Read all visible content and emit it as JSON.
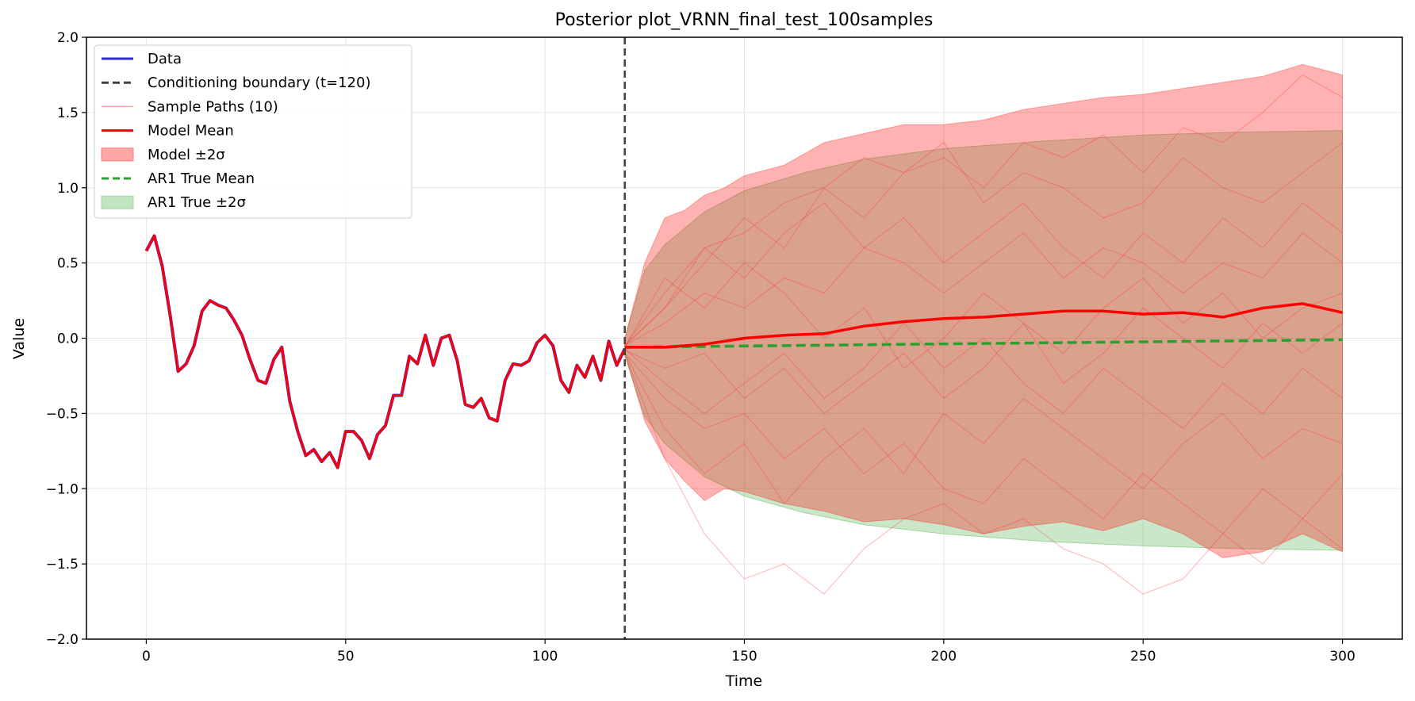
{
  "chart_data": {
    "type": "line",
    "title": "Posterior plot_VRNN_final_test_100samples",
    "xlabel": "Time",
    "ylabel": "Value",
    "xlim": [
      -15,
      315
    ],
    "ylim": [
      -2.0,
      2.0
    ],
    "xticks": [
      0,
      50,
      100,
      150,
      200,
      250,
      300
    ],
    "yticks": [
      -2.0,
      -1.5,
      -1.0,
      -0.5,
      0.0,
      0.5,
      1.0,
      1.5,
      2.0
    ],
    "grid": true,
    "legend_position": "top-left",
    "conditioning_boundary": 120,
    "legend": [
      {
        "label": "Data",
        "kind": "line",
        "color": "#2b2bdd"
      },
      {
        "label": "Conditioning boundary (t=120)",
        "kind": "dashed",
        "color": "#404040"
      },
      {
        "label": "Sample Paths (10)",
        "kind": "thin",
        "color": "#ff9c9c"
      },
      {
        "label": "Model Mean",
        "kind": "line",
        "color": "#ff0000"
      },
      {
        "label": "Model ±2σ",
        "kind": "patch",
        "color": "#ff8080"
      },
      {
        "label": "AR1 True Mean",
        "kind": "dashed",
        "color": "#2ca02c"
      },
      {
        "label": "AR1 True ±2σ",
        "kind": "patch",
        "color": "#a6d8a6"
      }
    ],
    "data": {
      "x": [
        0,
        2,
        4,
        6,
        8,
        10,
        12,
        14,
        16,
        18,
        20,
        22,
        24,
        26,
        28,
        30,
        32,
        34,
        36,
        38,
        40,
        42,
        44,
        46,
        48,
        50,
        52,
        54,
        56,
        58,
        60,
        62,
        64,
        66,
        68,
        70,
        72,
        74,
        76,
        78,
        80,
        82,
        84,
        86,
        88,
        90,
        92,
        94,
        96,
        98,
        100,
        102,
        104,
        106,
        108,
        110,
        112,
        114,
        116,
        118,
        120
      ],
      "y": [
        0.58,
        0.68,
        0.48,
        0.15,
        -0.22,
        -0.17,
        -0.05,
        0.18,
        0.25,
        0.22,
        0.2,
        0.12,
        0.02,
        -0.14,
        -0.28,
        -0.3,
        -0.14,
        -0.06,
        -0.42,
        -0.62,
        -0.78,
        -0.74,
        -0.82,
        -0.76,
        -0.86,
        -0.62,
        -0.62,
        -0.68,
        -0.8,
        -0.64,
        -0.58,
        -0.38,
        -0.38,
        -0.12,
        -0.17,
        0.02,
        -0.18,
        0.0,
        0.02,
        -0.15,
        -0.44,
        -0.46,
        -0.4,
        -0.53,
        -0.55,
        -0.28,
        -0.17,
        -0.18,
        -0.15,
        -0.03,
        0.02,
        -0.05,
        -0.28,
        -0.36,
        -0.18,
        -0.26,
        -0.12,
        -0.28,
        -0.02,
        -0.18,
        -0.07
      ]
    },
    "model_mean": {
      "x": [
        120,
        130,
        140,
        150,
        160,
        170,
        180,
        190,
        200,
        210,
        220,
        230,
        240,
        250,
        260,
        270,
        280,
        290,
        300
      ],
      "y": [
        -0.06,
        -0.06,
        -0.04,
        0.0,
        0.02,
        0.03,
        0.08,
        0.11,
        0.13,
        0.14,
        0.16,
        0.18,
        0.18,
        0.16,
        0.17,
        0.14,
        0.2,
        0.23,
        0.17
      ]
    },
    "model_band": {
      "x": [
        120,
        125,
        130,
        135,
        140,
        145,
        150,
        160,
        170,
        180,
        190,
        200,
        210,
        220,
        230,
        240,
        250,
        260,
        270,
        280,
        290,
        300
      ],
      "upper": [
        0.0,
        0.5,
        0.8,
        0.85,
        0.95,
        1.0,
        1.08,
        1.15,
        1.3,
        1.36,
        1.42,
        1.42,
        1.45,
        1.52,
        1.56,
        1.6,
        1.62,
        1.66,
        1.7,
        1.74,
        1.82,
        1.75
      ],
      "lower": [
        -0.1,
        -0.55,
        -0.8,
        -0.95,
        -1.08,
        -1.0,
        -1.02,
        -1.1,
        -1.15,
        -1.22,
        -1.2,
        -1.24,
        -1.3,
        -1.25,
        -1.22,
        -1.28,
        -1.2,
        -1.3,
        -1.46,
        -1.42,
        -1.3,
        -1.42
      ]
    },
    "ar1_mean": {
      "x": [
        120,
        300
      ],
      "y": [
        -0.06,
        -0.01
      ]
    },
    "ar1_band": {
      "x": [
        120,
        125,
        130,
        140,
        150,
        165,
        180,
        200,
        225,
        250,
        275,
        300
      ],
      "upper": [
        0.0,
        0.45,
        0.62,
        0.84,
        0.98,
        1.1,
        1.19,
        1.26,
        1.31,
        1.35,
        1.37,
        1.38
      ],
      "lower": [
        -0.12,
        -0.52,
        -0.7,
        -0.92,
        -1.05,
        -1.16,
        -1.24,
        -1.3,
        -1.35,
        -1.38,
        -1.4,
        -1.41
      ]
    },
    "sample_paths": [
      {
        "x": [
          120,
          130,
          140,
          150,
          160,
          170,
          180,
          190,
          200,
          210,
          220,
          230,
          240,
          250,
          260,
          270,
          280,
          290,
          300
        ],
        "y": [
          -0.05,
          0.3,
          0.6,
          0.7,
          0.9,
          1.0,
          0.8,
          1.1,
          1.2,
          1.0,
          1.3,
          1.2,
          1.35,
          1.1,
          1.4,
          1.3,
          1.5,
          1.75,
          1.6
        ]
      },
      {
        "x": [
          120,
          130,
          140,
          150,
          160,
          170,
          180,
          190,
          200,
          210,
          220,
          230,
          240,
          250,
          260,
          270,
          280,
          290,
          300
        ],
        "y": [
          -0.1,
          -0.8,
          -1.3,
          -1.6,
          -1.5,
          -1.7,
          -1.4,
          -1.2,
          -1.1,
          -1.3,
          -1.2,
          -1.4,
          -1.5,
          -1.7,
          -1.6,
          -1.3,
          -1.5,
          -1.2,
          -1.4
        ]
      },
      {
        "x": [
          120,
          130,
          140,
          150,
          160,
          170,
          180,
          190,
          200,
          210,
          220,
          230,
          240,
          250,
          260,
          270,
          280,
          290,
          300
        ],
        "y": [
          -0.05,
          0.2,
          0.5,
          0.8,
          0.6,
          1.0,
          1.2,
          1.1,
          1.3,
          0.9,
          1.1,
          1.0,
          0.8,
          0.9,
          1.2,
          1.0,
          0.9,
          1.1,
          1.3
        ]
      },
      {
        "x": [
          120,
          130,
          140,
          150,
          160,
          170,
          180,
          190,
          200,
          210,
          220,
          230,
          240,
          250,
          260,
          270,
          280,
          290,
          300
        ],
        "y": [
          -0.1,
          -0.4,
          -0.6,
          -0.5,
          -0.8,
          -0.6,
          -0.9,
          -0.7,
          -1.0,
          -1.1,
          -0.8,
          -1.0,
          -1.2,
          -0.9,
          -1.1,
          -1.3,
          -1.0,
          -1.2,
          -0.9
        ]
      },
      {
        "x": [
          120,
          130,
          140,
          150,
          160,
          170,
          180,
          190,
          200,
          210,
          220,
          230,
          240,
          250,
          260,
          270,
          280,
          290,
          300
        ],
        "y": [
          -0.05,
          0.1,
          0.3,
          0.2,
          0.4,
          0.3,
          0.6,
          0.5,
          0.3,
          0.5,
          0.7,
          0.4,
          0.6,
          0.5,
          0.3,
          0.5,
          0.4,
          0.7,
          0.5
        ]
      },
      {
        "x": [
          120,
          130,
          140,
          150,
          160,
          170,
          180,
          190,
          200,
          210,
          220,
          230,
          240,
          250,
          260,
          270,
          280,
          290,
          300
        ],
        "y": [
          -0.08,
          -0.2,
          -0.1,
          -0.4,
          -0.2,
          -0.5,
          -0.3,
          -0.1,
          -0.4,
          -0.2,
          0.1,
          -0.3,
          -0.1,
          0.2,
          0.0,
          -0.2,
          0.1,
          -0.1,
          0.1
        ]
      },
      {
        "x": [
          120,
          130,
          140,
          150,
          160,
          170,
          180,
          190,
          200,
          210,
          220,
          230,
          240,
          250,
          260,
          270,
          280,
          290,
          300
        ],
        "y": [
          -0.06,
          0.4,
          0.2,
          0.5,
          0.3,
          0.0,
          0.2,
          -0.2,
          0.0,
          0.3,
          0.1,
          -0.1,
          0.2,
          0.4,
          0.1,
          0.3,
          0.0,
          0.2,
          0.3
        ]
      },
      {
        "x": [
          120,
          130,
          140,
          150,
          160,
          170,
          180,
          190,
          200,
          210,
          220,
          230,
          240,
          250,
          260,
          270,
          280,
          290,
          300
        ],
        "y": [
          -0.1,
          -0.6,
          -0.9,
          -0.7,
          -1.1,
          -0.8,
          -0.6,
          -0.9,
          -0.5,
          -0.7,
          -0.4,
          -0.6,
          -0.8,
          -1.0,
          -0.7,
          -0.5,
          -0.8,
          -0.6,
          -0.7
        ]
      },
      {
        "x": [
          120,
          130,
          140,
          150,
          160,
          170,
          180,
          190,
          200,
          210,
          220,
          230,
          240,
          250,
          260,
          270,
          280,
          290,
          300
        ],
        "y": [
          -0.05,
          0.2,
          0.6,
          0.4,
          0.7,
          0.9,
          0.6,
          0.8,
          0.5,
          0.7,
          0.9,
          0.6,
          0.4,
          0.7,
          0.5,
          0.8,
          0.6,
          0.9,
          0.7
        ]
      },
      {
        "x": [
          120,
          130,
          140,
          150,
          160,
          170,
          180,
          190,
          200,
          210,
          220,
          230,
          240,
          250,
          260,
          270,
          280,
          290,
          300
        ],
        "y": [
          -0.07,
          -0.3,
          -0.5,
          -0.3,
          -0.1,
          -0.4,
          -0.2,
          0.1,
          -0.2,
          0.0,
          -0.3,
          -0.5,
          -0.2,
          -0.4,
          -0.6,
          -0.3,
          -0.5,
          -0.2,
          -0.4
        ]
      }
    ]
  }
}
